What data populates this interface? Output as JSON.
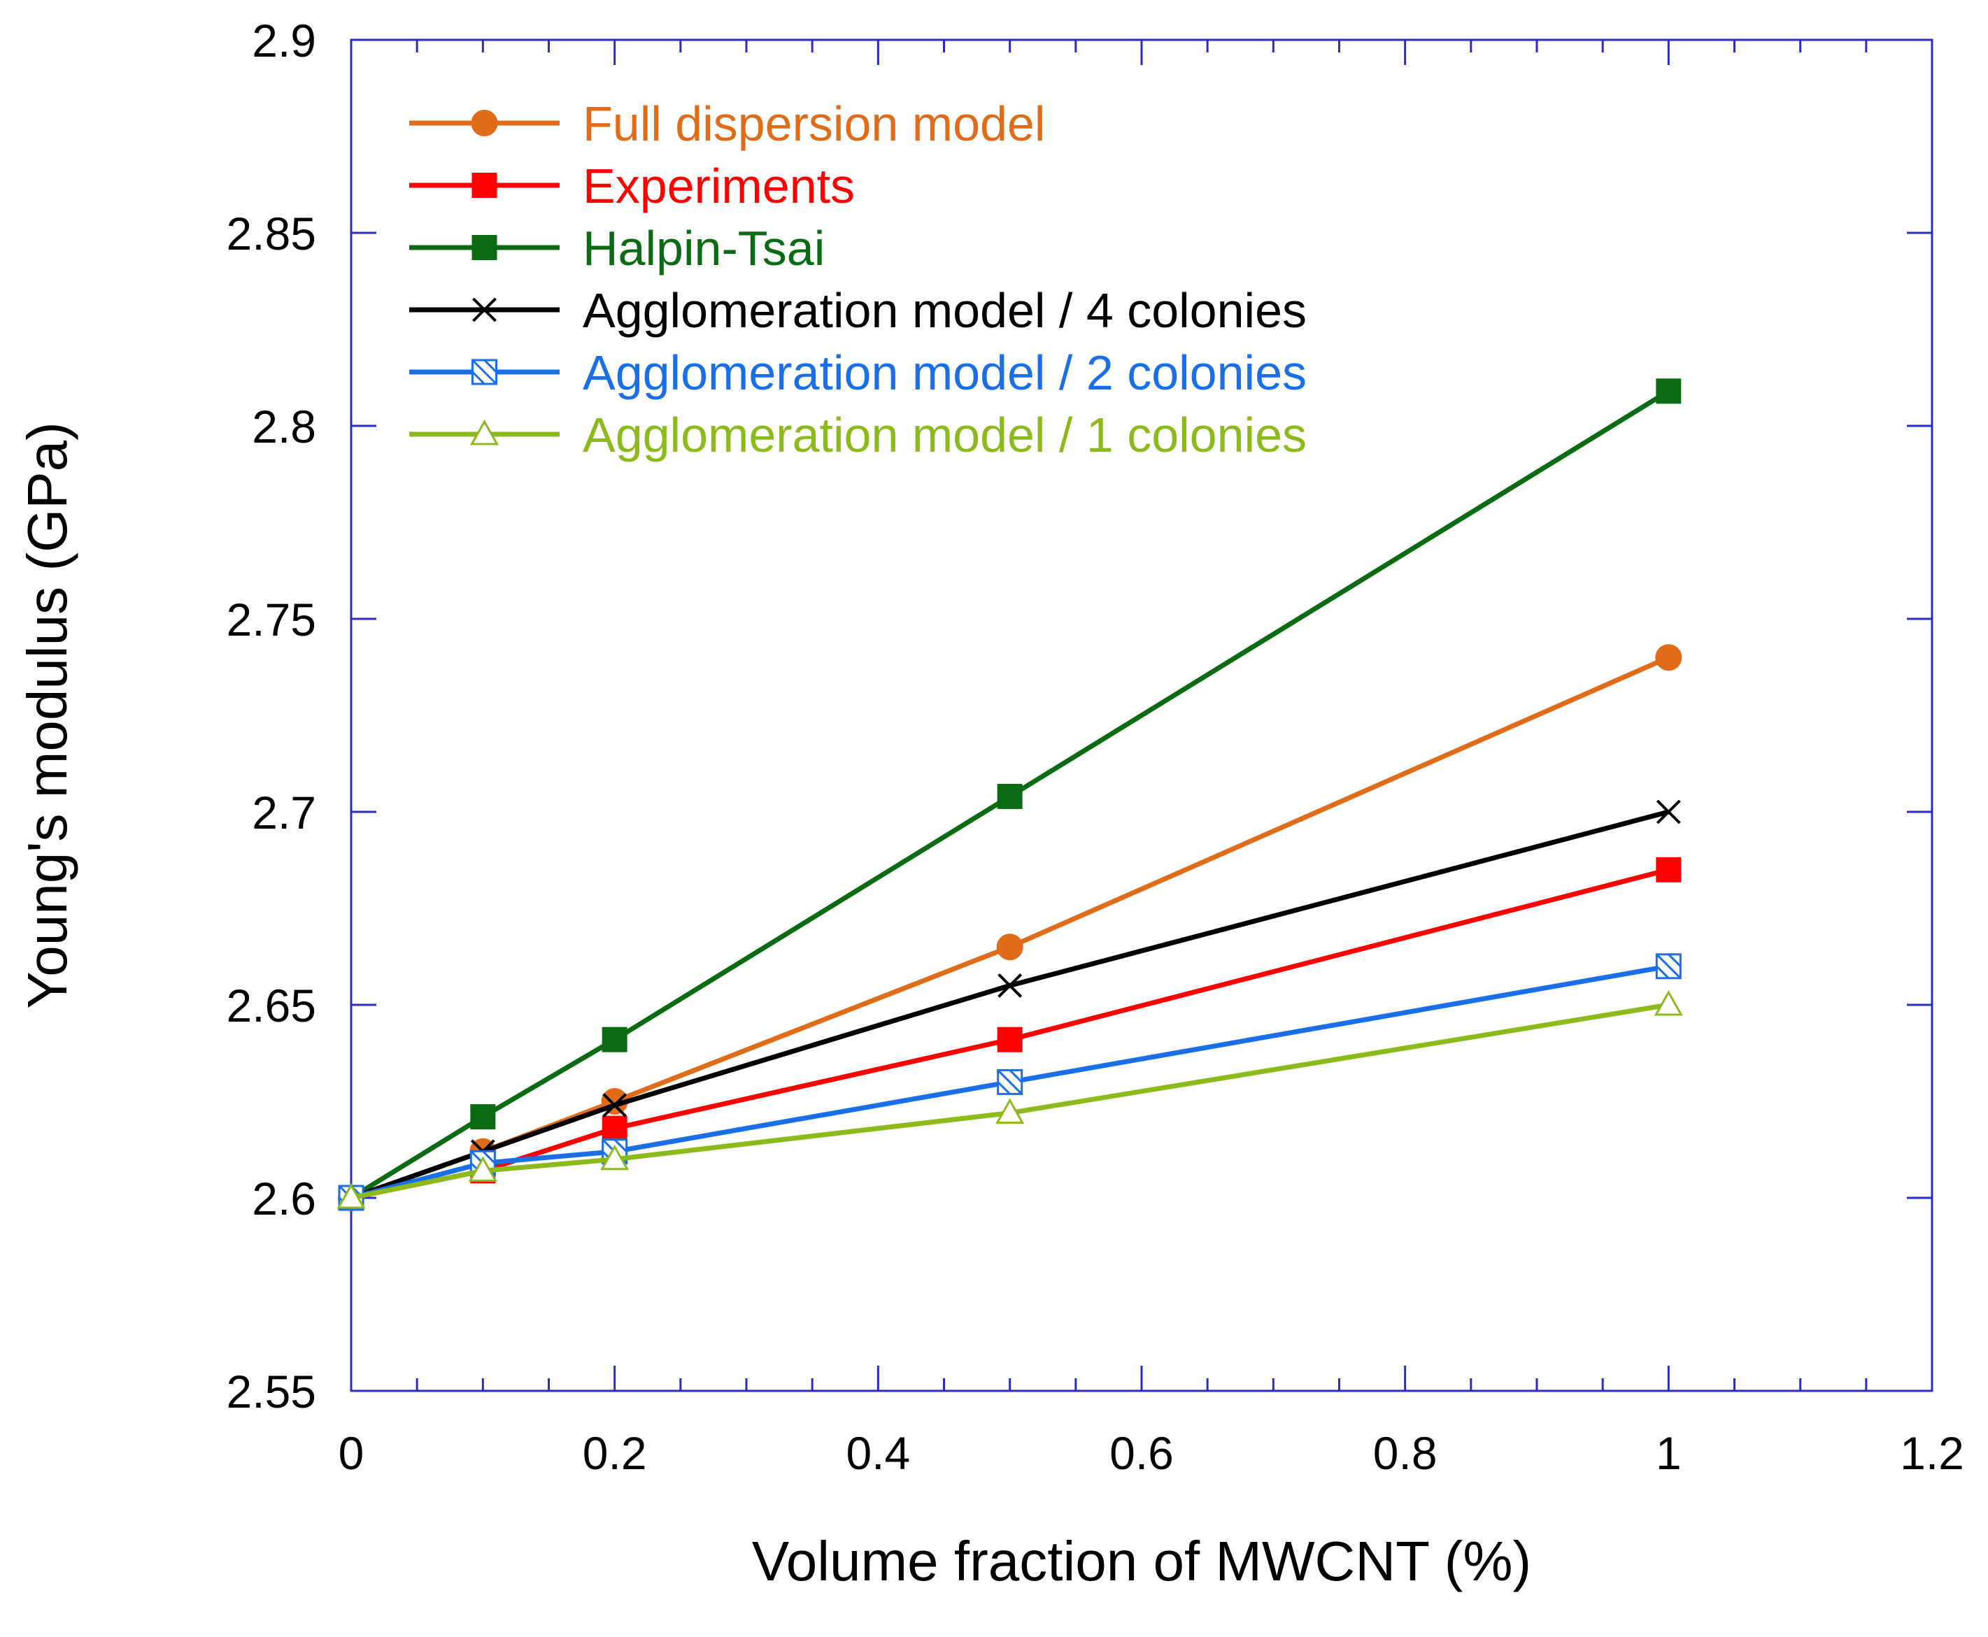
{
  "chart_data": {
    "type": "line",
    "title": "",
    "xlabel": "Volume fraction of MWCNT (%)",
    "ylabel": "Young's modulus (GPa)",
    "xlim": [
      0,
      1.2
    ],
    "ylim": [
      2.55,
      2.9
    ],
    "x_major_ticks": [
      0,
      0.2,
      0.4,
      0.6,
      0.8,
      1,
      1.2
    ],
    "x_tick_labels": [
      "0",
      "0.2",
      "0.4",
      "0.6",
      "0.8",
      "1",
      "1.2"
    ],
    "y_major_ticks": [
      2.55,
      2.6,
      2.65,
      2.7,
      2.75,
      2.8,
      2.85,
      2.9
    ],
    "y_tick_labels": [
      "2.55",
      "2.6",
      "2.65",
      "2.7",
      "2.75",
      "2.8",
      "2.85",
      "2.9"
    ],
    "grid": false,
    "legend_position": "top-left",
    "axis_color": "#2b2bbf",
    "x": [
      0,
      0.1,
      0.2,
      0.5,
      1
    ],
    "series": [
      {
        "name": "Full dispersion model",
        "color": "#e06c1a",
        "marker": "filled-circle",
        "values": [
          2.6,
          2.612,
          2.625,
          2.665,
          2.74
        ]
      },
      {
        "name": "Experiments",
        "color": "#ff0000",
        "marker": "filled-square",
        "values": [
          2.6,
          2.607,
          2.618,
          2.641,
          2.685
        ]
      },
      {
        "name": "Halpin-Tsai",
        "color": "#0a6b12",
        "marker": "filled-square",
        "values": [
          2.6,
          2.621,
          2.641,
          2.704,
          2.809
        ]
      },
      {
        "name": "Agglomeration model / 4 colonies",
        "color": "#000000",
        "marker": "x-cross",
        "values": [
          2.6,
          2.612,
          2.624,
          2.655,
          2.7
        ]
      },
      {
        "name": "Agglomeration model / 2 colonies",
        "color": "#1a6fe8",
        "marker": "hatched-square",
        "values": [
          2.6,
          2.609,
          2.612,
          2.63,
          2.66
        ]
      },
      {
        "name": "Agglomeration model / 1 colonies",
        "color": "#8cba1a",
        "marker": "open-triangle",
        "values": [
          2.6,
          2.607,
          2.61,
          2.622,
          2.65
        ]
      }
    ]
  }
}
